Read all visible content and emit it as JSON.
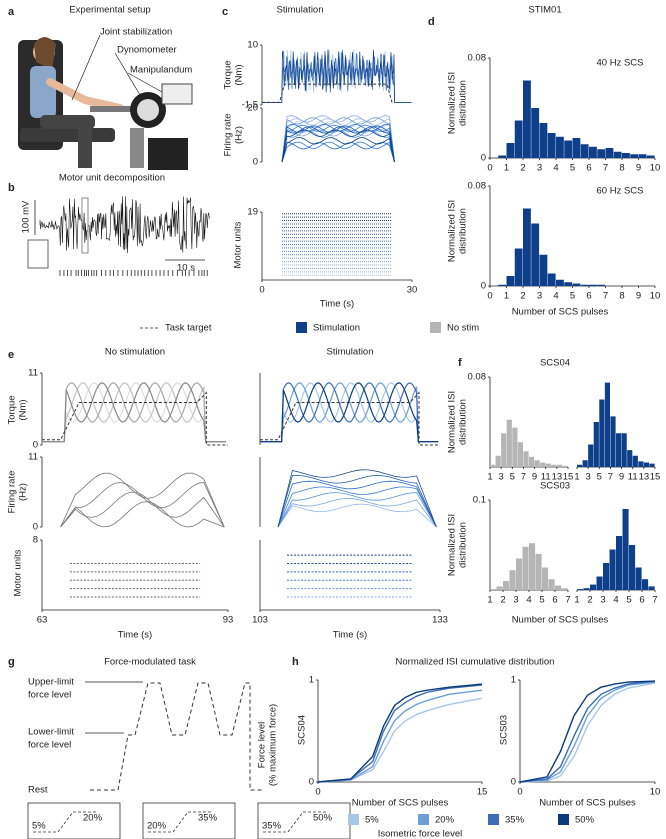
{
  "panels": {
    "a": {
      "letter": "a",
      "title": "Experimental setup",
      "labels": [
        "Joint stabilization",
        "Dynomometer",
        "Manipulandum"
      ]
    },
    "b": {
      "letter": "b",
      "title": "Motor unit decomposition",
      "scale_y": "100 mV",
      "scale_x": "10 s"
    },
    "c": {
      "letter": "c",
      "title": "Stimulation",
      "torque_label": [
        "Torque",
        "(Nm)"
      ],
      "torque_ylim": [
        -1.5,
        10
      ],
      "torque_yticks": [
        10,
        -1.5
      ],
      "rate_label": [
        "Firing rate",
        "(Hz)"
      ],
      "rate_ylim": [
        0,
        20
      ],
      "rate_yticks": [
        0,
        20
      ],
      "units_label": "Motor units",
      "units_ylim": [
        0,
        19
      ],
      "units_yticks": [
        19
      ],
      "xlim": [
        0,
        30
      ],
      "xticks": [
        0,
        30
      ],
      "xlabel": "Time (s)",
      "task_target": {
        "x": [
          0,
          3.5,
          4.5,
          25,
          26
        ],
        "y": [
          -1,
          -1,
          2.5,
          2.5,
          -1
        ]
      }
    },
    "d": {
      "letter": "d",
      "title": "STIM01",
      "ylabel": [
        "Normalized ISI",
        "distribution"
      ],
      "xlabel": "Number of SCS pulses",
      "xlim": [
        0,
        10
      ],
      "xticks": [
        0,
        1,
        2,
        3,
        4,
        5,
        6,
        7,
        8,
        9,
        10
      ],
      "color": "#0d3f8a",
      "charts": [
        {
          "label": "40 Hz SCS",
          "ylim": [
            0,
            0.08
          ],
          "yticks": [
            0,
            0.08
          ],
          "bins": [
            0,
            0.5,
            1,
            1.5,
            2,
            2.5,
            3,
            3.5,
            4,
            4.5,
            5,
            5.5,
            6,
            6.5,
            7,
            7.5,
            8,
            8.5,
            9,
            9.5,
            10
          ],
          "values": [
            0,
            0.002,
            0.012,
            0.03,
            0.062,
            0.04,
            0.028,
            0.02,
            0.017,
            0.014,
            0.016,
            0.011,
            0.009,
            0.007,
            0.008,
            0.005,
            0.004,
            0.003,
            0.003,
            0.002
          ]
        },
        {
          "label": "60 Hz SCS",
          "ylim": [
            0,
            0.08
          ],
          "yticks": [
            0,
            0.08
          ],
          "bins": [
            0,
            0.5,
            1,
            1.5,
            2,
            2.5,
            3,
            3.5,
            4,
            4.5,
            5,
            5.5,
            6,
            6.5,
            7,
            7.5,
            8,
            8.5,
            9,
            9.5,
            10
          ],
          "values": [
            0,
            0.001,
            0.008,
            0.03,
            0.062,
            0.05,
            0.025,
            0.01,
            0.005,
            0.003,
            0.002,
            0.001,
            0.001,
            0.001,
            0,
            0,
            0,
            0,
            0,
            0
          ]
        }
      ]
    },
    "legend": {
      "task_target": "Task target",
      "stimulation": "Stimulation",
      "no_stim": "No stim",
      "stim_color": "#0d3f8a",
      "no_stim_color": "#b5b5b5"
    },
    "e": {
      "letter": "e",
      "torque_label": [
        "Torque",
        "(Nm)"
      ],
      "torque_ylim": [
        0,
        11
      ],
      "torque_yticks": [
        0,
        11
      ],
      "rate_label": [
        "Firing rate",
        "(Hz)"
      ],
      "rate_ylim": [
        0,
        11
      ],
      "rate_yticks": [
        0,
        11
      ],
      "units_label": "Motor units",
      "units_ylim": [
        0,
        8
      ],
      "units_yticks": [
        8
      ],
      "xlabel": "Time (s)",
      "plots": [
        {
          "title": "No stimulation",
          "xlim": [
            63,
            93
          ],
          "xticks": [
            63,
            93
          ],
          "task_target": {
            "x": [
              63,
              66,
              69,
              88,
              89.5,
              89.5,
              93
            ],
            "y": [
              0.8,
              0.8,
              6.5,
              6.5,
              8,
              0,
              0
            ]
          }
        },
        {
          "title": "Stimulation",
          "xlim": [
            103,
            133
          ],
          "xticks": [
            103,
            133
          ],
          "task_target": {
            "x": [
              103,
              106,
              109,
              128,
              129.5,
              129.5,
              133
            ],
            "y": [
              0.8,
              0.8,
              6.5,
              6.5,
              8,
              0,
              0
            ]
          }
        }
      ]
    },
    "f": {
      "letter": "f",
      "ylabel": [
        "Normalized ISI",
        "distribution"
      ],
      "xlabel": "Number  of SCS pulses",
      "charts": [
        {
          "title": "SCS04",
          "ylim": [
            0,
            0.08
          ],
          "yticks": [
            0.08
          ],
          "xlim": [
            1,
            15
          ],
          "xticks": [
            1,
            3,
            5,
            7,
            9,
            11,
            13,
            15
          ],
          "no_stim": {
            "bins": [
              1,
              2,
              3,
              4,
              5,
              6,
              7,
              8,
              9,
              10,
              11,
              12,
              13,
              14,
              15
            ],
            "values": [
              0.002,
              0.01,
              0.03,
              0.042,
              0.035,
              0.022,
              0.014,
              0.009,
              0.006,
              0.004,
              0.003,
              0.002,
              0.002,
              0.001
            ]
          },
          "stim": {
            "bins": [
              1,
              2,
              3,
              4,
              5,
              6,
              7,
              8,
              9,
              10,
              11,
              12,
              13,
              14,
              15
            ],
            "values": [
              0.002,
              0.006,
              0.02,
              0.04,
              0.06,
              0.075,
              0.045,
              0.03,
              0.03,
              0.015,
              0.01,
              0.005,
              0.004,
              0.003
            ]
          }
        },
        {
          "title": "SCS03",
          "ylim": [
            0,
            0.1
          ],
          "yticks": [
            0.1
          ],
          "xlim": [
            1,
            7
          ],
          "xticks": [
            1,
            2,
            3,
            4,
            5,
            6,
            7
          ],
          "no_stim": {
            "bins": [
              1,
              1.5,
              2,
              2.5,
              3,
              3.5,
              4,
              4.5,
              5,
              5.5,
              6,
              6.5,
              7
            ],
            "values": [
              0.001,
              0.004,
              0.01,
              0.022,
              0.035,
              0.048,
              0.052,
              0.04,
              0.025,
              0.012,
              0.005,
              0.002
            ]
          },
          "stim": {
            "bins": [
              1,
              1.5,
              2,
              2.5,
              3,
              3.5,
              4,
              4.5,
              5,
              5.5,
              6,
              6.5,
              7
            ],
            "values": [
              0.001,
              0.002,
              0.006,
              0.015,
              0.03,
              0.045,
              0.06,
              0.09,
              0.05,
              0.025,
              0.012,
              0.004
            ]
          }
        }
      ]
    },
    "g": {
      "letter": "g",
      "title": "Force-modulated task",
      "upper": [
        "Upper-limit",
        "force level"
      ],
      "lower": [
        "Lower-limit",
        "force level"
      ],
      "rest": "Rest",
      "force_label": [
        "Force level",
        "(% maximum force)"
      ],
      "boxes": [
        {
          "low": "5%",
          "high": "20%"
        },
        {
          "low": "20%",
          "high": "35%"
        },
        {
          "low": "35%",
          "high": "50%"
        }
      ]
    },
    "h": {
      "letter": "h",
      "title": "Normalized ISI cumulative distribution",
      "xlabel": "Number of SCS pulses",
      "legend_title": "Isometric force level",
      "force_levels": [
        {
          "name": "5%",
          "color": "#a8c6e6"
        },
        {
          "name": "20%",
          "color": "#6b9fd6"
        },
        {
          "name": "35%",
          "color": "#3a6db5"
        },
        {
          "name": "50%",
          "color": "#0d3a7d"
        }
      ],
      "charts": [
        {
          "ylabel": "SCS04",
          "xlim": [
            0,
            15
          ],
          "xticks": [
            0,
            15
          ],
          "ylim": [
            0,
            1
          ],
          "yticks": [
            0,
            1
          ],
          "x": [
            0,
            3,
            5,
            6,
            7,
            8,
            9,
            10,
            12,
            15
          ],
          "series": [
            {
              "values": [
                0,
                0.02,
                0.12,
                0.3,
                0.5,
                0.6,
                0.66,
                0.7,
                0.76,
                0.82
              ]
            },
            {
              "values": [
                0,
                0.02,
                0.15,
                0.4,
                0.6,
                0.7,
                0.76,
                0.8,
                0.86,
                0.9
              ]
            },
            {
              "values": [
                0,
                0.03,
                0.2,
                0.5,
                0.7,
                0.78,
                0.84,
                0.88,
                0.92,
                0.95
              ]
            },
            {
              "values": [
                0,
                0.03,
                0.25,
                0.55,
                0.75,
                0.83,
                0.88,
                0.9,
                0.93,
                0.96
              ]
            }
          ]
        },
        {
          "ylabel": "SCS03",
          "xlim": [
            0,
            10
          ],
          "xticks": [
            0,
            10
          ],
          "ylim": [
            0,
            1
          ],
          "yticks": [
            0,
            1
          ],
          "x": [
            0,
            2,
            3,
            4,
            5,
            6,
            7,
            8,
            10
          ],
          "series": [
            {
              "values": [
                0,
                0.01,
                0.06,
                0.25,
                0.55,
                0.75,
                0.86,
                0.92,
                0.97
              ]
            },
            {
              "values": [
                0,
                0.02,
                0.1,
                0.35,
                0.65,
                0.82,
                0.9,
                0.95,
                0.98
              ]
            },
            {
              "values": [
                0,
                0.03,
                0.15,
                0.45,
                0.72,
                0.86,
                0.92,
                0.96,
                0.99
              ]
            },
            {
              "values": [
                0,
                0.05,
                0.3,
                0.65,
                0.85,
                0.93,
                0.96,
                0.98,
                0.99
              ]
            }
          ]
        }
      ]
    }
  }
}
